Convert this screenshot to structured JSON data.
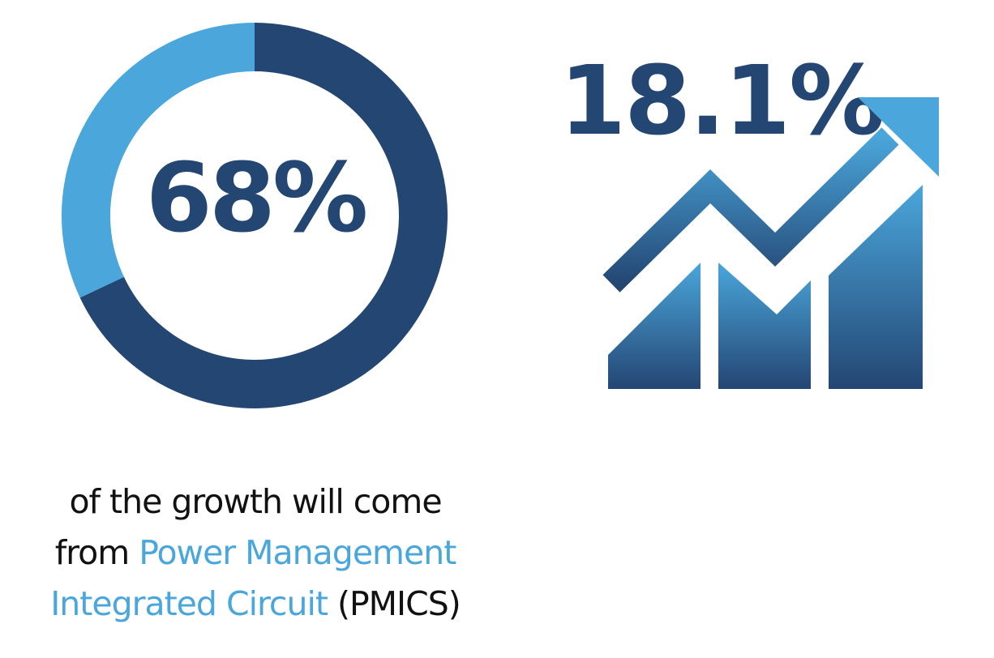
{
  "colors": {
    "dark": "#244673",
    "light": "#4aa6db",
    "text": "#111111",
    "background": "#ffffff"
  },
  "chart_data": {
    "type": "pie",
    "slices": [
      {
        "value": 68,
        "color": "#244673"
      },
      {
        "value": 32,
        "color": "#4aa6db"
      }
    ],
    "center_label": "68%"
  },
  "growth": {
    "value_label": "18.1%",
    "icon": "rising-bar-chart-arrow-icon"
  },
  "caption": {
    "line1": "of the growth will come",
    "line2_plain": "from ",
    "line2_highlight": "Power Management",
    "line3_highlight": "Integrated Circuit",
    "line3_plain": " (PMICS)"
  }
}
